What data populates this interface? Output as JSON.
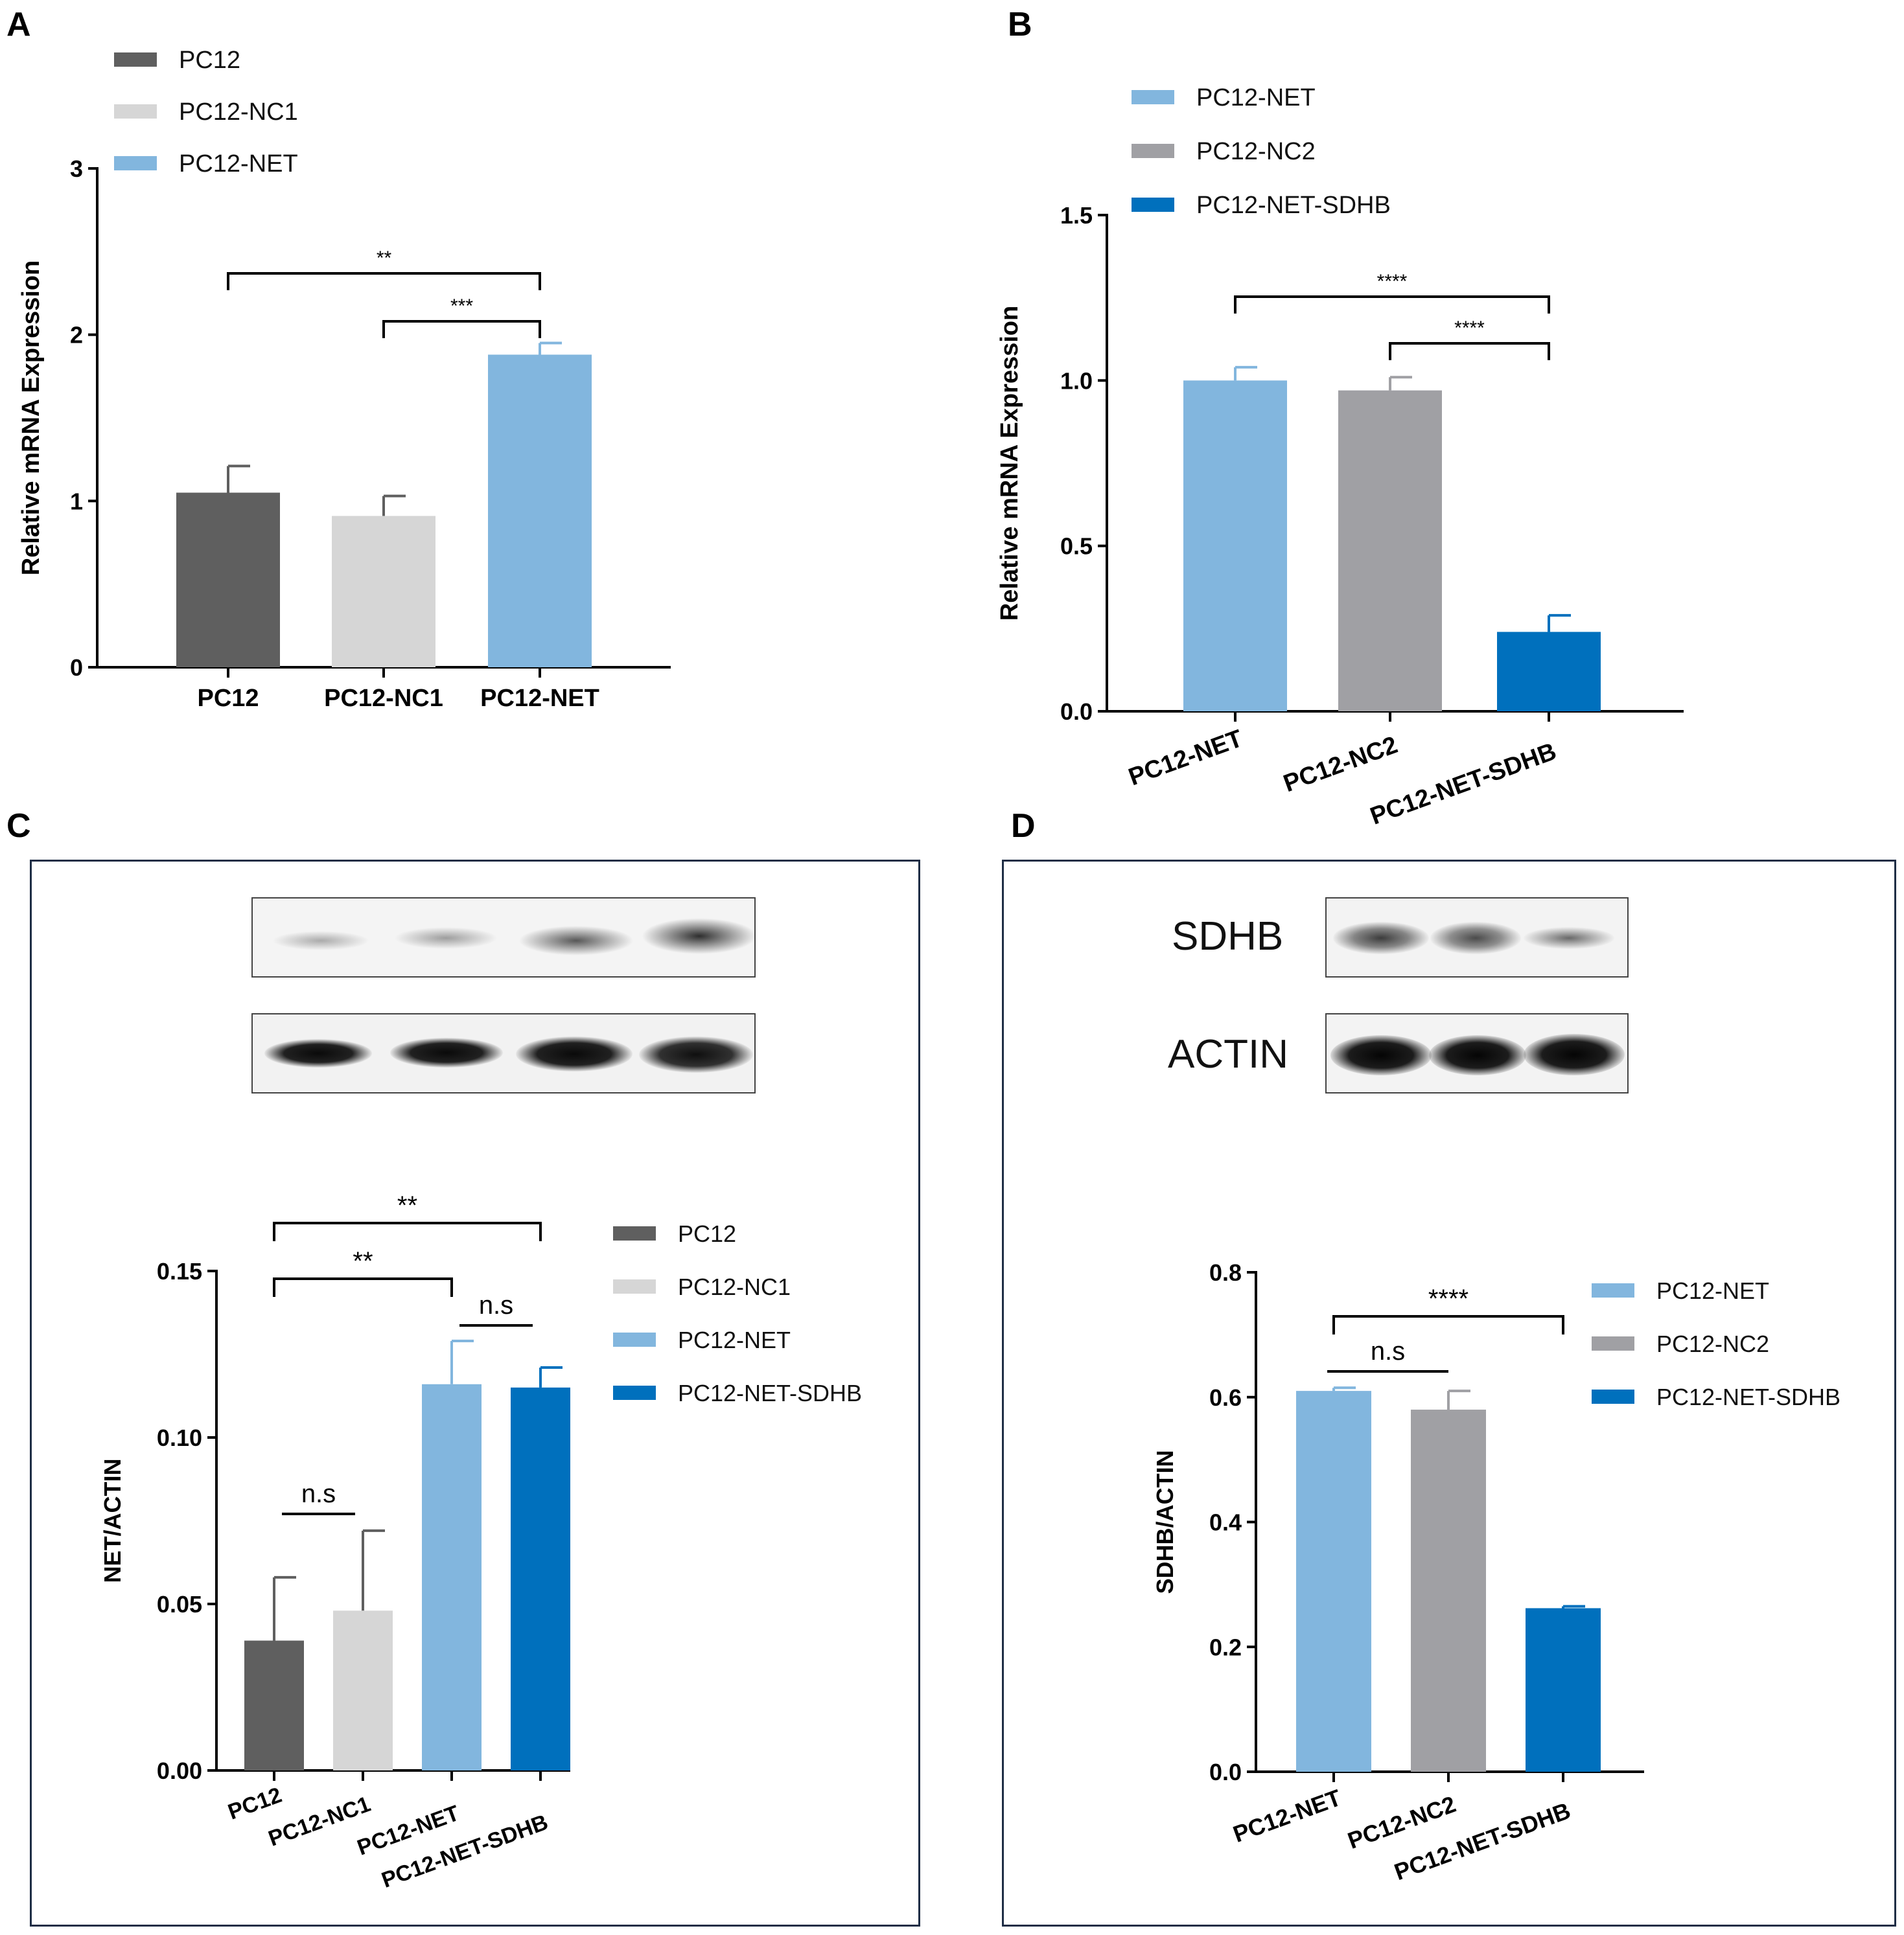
{
  "panels": {
    "A": "A",
    "B": "B",
    "C": "C",
    "D": "D"
  },
  "colors": {
    "PC12": "#5f5f5f",
    "PC12-NC1": "#d6d6d6",
    "PC12-NET": "#82b6de",
    "PC12-NC2": "#a0a0a4",
    "PC12-NET-SDHB": "#0070bd"
  },
  "blots": {
    "C": {
      "labels": []
    },
    "D": {
      "labels": [
        "SDHB",
        "ACTIN"
      ]
    }
  },
  "chart_data": [
    {
      "panel": "A",
      "type": "bar",
      "categories": [
        "PC12",
        "PC12-NC1",
        "PC12-NET"
      ],
      "values": [
        1.05,
        0.91,
        1.88
      ],
      "errors": [
        0.16,
        0.12,
        0.07
      ],
      "ylabel": "Relative mRNA Expression",
      "xlabel": "",
      "ylim": [
        0,
        3
      ],
      "yticks": [
        "0",
        "1",
        "2",
        "3"
      ],
      "legend": [
        "PC12",
        "PC12-NC1",
        "PC12-NET"
      ],
      "legend_position": "top-left",
      "significance": [
        {
          "from": 0,
          "to": 2,
          "label": "**"
        },
        {
          "from": 1,
          "to": 2,
          "label": "***"
        }
      ]
    },
    {
      "panel": "B",
      "type": "bar",
      "categories": [
        "PC12-NET",
        "PC12-NC2",
        "PC12-NET-SDHB"
      ],
      "values": [
        1.0,
        0.97,
        0.24
      ],
      "errors": [
        0.04,
        0.04,
        0.05
      ],
      "ylabel": "Relative mRNA Expression",
      "xlabel": "",
      "ylim": [
        0,
        1.5
      ],
      "yticks": [
        "0.0",
        "0.5",
        "1.0",
        "1.5"
      ],
      "legend": [
        "PC12-NET",
        "PC12-NC2",
        "PC12-NET-SDHB"
      ],
      "legend_position": "top-left",
      "significance": [
        {
          "from": 0,
          "to": 2,
          "label": "****"
        },
        {
          "from": 1,
          "to": 2,
          "label": "****"
        }
      ]
    },
    {
      "panel": "C",
      "type": "bar",
      "categories": [
        "PC12",
        "PC12-NC1",
        "PC12-NET",
        "PC12-NET-SDHB"
      ],
      "values": [
        0.039,
        0.048,
        0.116,
        0.115
      ],
      "errors": [
        0.019,
        0.024,
        0.013,
        0.006
      ],
      "ylabel": "NET/ACTIN",
      "xlabel": "",
      "ylim": [
        0,
        0.15
      ],
      "yticks": [
        "0.00",
        "0.05",
        "0.10",
        "0.15"
      ],
      "legend": [
        "PC12",
        "PC12-NC1",
        "PC12-NET",
        "PC12-NET-SDHB"
      ],
      "legend_position": "right",
      "significance": [
        {
          "from": 0,
          "to": 3,
          "label": "**"
        },
        {
          "from": 0,
          "to": 2,
          "label": "**"
        },
        {
          "from": 2,
          "to": 3,
          "label": "n.s"
        },
        {
          "from": 0,
          "to": 1,
          "label": "n.s"
        }
      ]
    },
    {
      "panel": "D",
      "type": "bar",
      "categories": [
        "PC12-NET",
        "PC12-NC2",
        "PC12-NET-SDHB"
      ],
      "values": [
        0.61,
        0.58,
        0.262
      ],
      "errors": [
        0.005,
        0.03,
        0.003
      ],
      "ylabel": "SDHB/ACTIN",
      "xlabel": "",
      "ylim": [
        0,
        0.8
      ],
      "yticks": [
        "0.0",
        "0.2",
        "0.4",
        "0.6",
        "0.8"
      ],
      "legend": [
        "PC12-NET",
        "PC12-NC2",
        "PC12-NET-SDHB"
      ],
      "legend_position": "right",
      "significance": [
        {
          "from": 0,
          "to": 2,
          "label": "****"
        },
        {
          "from": 0,
          "to": 1,
          "label": "n.s"
        }
      ]
    }
  ]
}
